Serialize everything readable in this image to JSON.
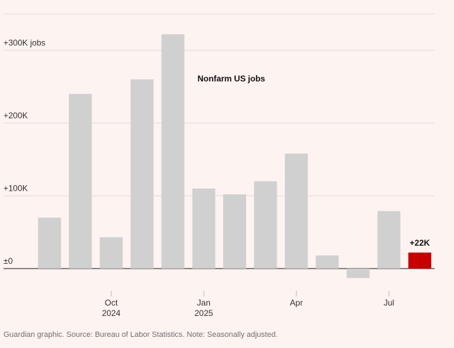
{
  "chart_data": {
    "type": "bar",
    "annotation": "Nonfarm US jobs",
    "source": "Guardian graphic. Source: Bureau of Labor Statistics. Note: Seasonally adjusted.",
    "categories": [
      null,
      null,
      "Oct 2024",
      null,
      null,
      "Jan 2025",
      null,
      null,
      "Apr",
      null,
      null,
      "Jul",
      null
    ],
    "values": [
      70,
      240,
      43,
      260,
      322,
      110,
      102,
      120,
      158,
      18,
      -13,
      79,
      22
    ],
    "value_labels": [
      null,
      null,
      null,
      null,
      null,
      null,
      null,
      null,
      null,
      null,
      null,
      null,
      "+22K"
    ],
    "colors": [
      "#d0d0d0",
      "#d0d0d0",
      "#d0d0d0",
      "#d0d0d0",
      "#d0d0d0",
      "#d0d0d0",
      "#d0d0d0",
      "#d0d0d0",
      "#d0d0d0",
      "#d0d0d0",
      "#d0d0d0",
      "#d0d0d0",
      "#c70000"
    ],
    "ylim": [
      -25,
      350
    ],
    "yticks": [
      {
        "value": 0,
        "label": "±0"
      },
      {
        "value": 100,
        "label": "+100K"
      },
      {
        "value": 200,
        "label": "+200K"
      },
      {
        "value": 300,
        "label": "+300K jobs"
      }
    ],
    "grid": true
  }
}
